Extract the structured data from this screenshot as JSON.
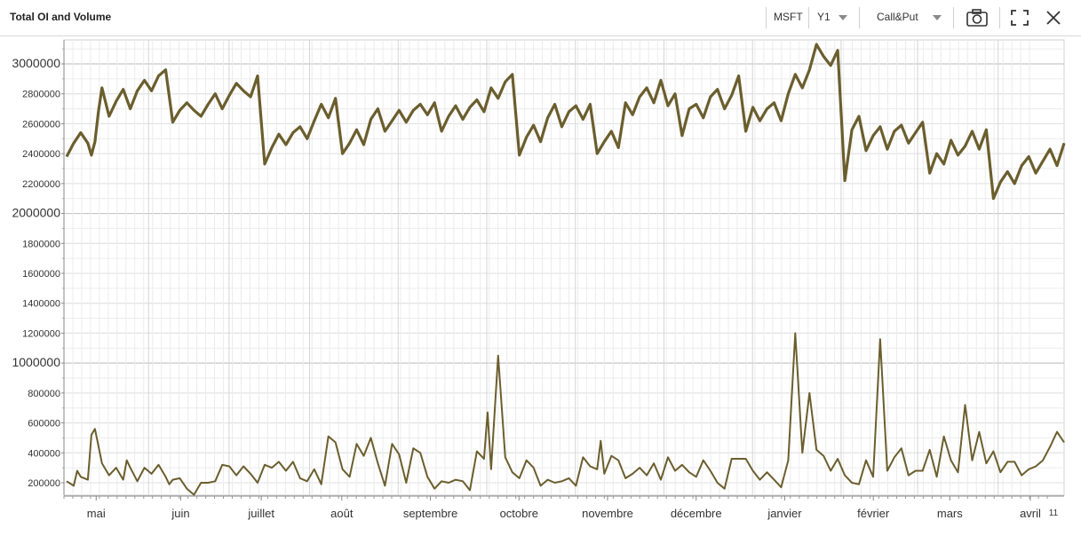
{
  "toolbar": {
    "title": "Total OI and Volume",
    "ticker": "MSFT",
    "period": "Y1",
    "type": "Call&Put"
  },
  "icons": [
    "camera-icon",
    "fullscreen-icon",
    "close-icon"
  ],
  "colors": {
    "series": "#6b5e2e",
    "grid_minor": "#ececec",
    "grid_major": "#c8c8c8",
    "axis": "#888888"
  },
  "chart_data": {
    "type": "line",
    "title": "",
    "xlabel": "",
    "ylabel": "",
    "ylim": [
      100000,
      3150000
    ],
    "yticks": [
      200000,
      400000,
      600000,
      800000,
      1000000,
      1200000,
      1400000,
      1600000,
      1800000,
      2000000,
      2200000,
      2400000,
      2600000,
      2800000,
      3000000
    ],
    "major_yticks": [
      1000000,
      2000000,
      3000000
    ],
    "xlim": [
      0,
      240
    ],
    "xticks": [
      {
        "label": "mai",
        "x": 8
      },
      {
        "label": "juin",
        "x": 29
      },
      {
        "label": "juillet",
        "x": 49
      },
      {
        "label": "août",
        "x": 69
      },
      {
        "label": "septembre",
        "x": 91
      },
      {
        "label": "octobre",
        "x": 113
      },
      {
        "label": "novembre",
        "x": 135
      },
      {
        "label": "décembre",
        "x": 157
      },
      {
        "label": "janvier",
        "x": 179
      },
      {
        "label": "février",
        "x": 201
      },
      {
        "label": "mars",
        "x": 220
      },
      {
        "label": "avril",
        "x": 240
      }
    ],
    "end_label": "11",
    "grid": true,
    "series": [
      {
        "points": [
          [
            0,
            2380000
          ],
          [
            1,
            2470000
          ],
          [
            2,
            2540000
          ],
          [
            3,
            2470000
          ],
          [
            3.5,
            2390000
          ],
          [
            4,
            2480000
          ],
          [
            4.5,
            2680000
          ],
          [
            5,
            2840000
          ],
          [
            6,
            2650000
          ],
          [
            7,
            2750000
          ],
          [
            8,
            2830000
          ],
          [
            9,
            2700000
          ],
          [
            10,
            2820000
          ],
          [
            11,
            2890000
          ],
          [
            12,
            2820000
          ],
          [
            13,
            2920000
          ],
          [
            14,
            2960000
          ],
          [
            15,
            2610000
          ],
          [
            16,
            2690000
          ],
          [
            17,
            2740000
          ],
          [
            18,
            2690000
          ],
          [
            19,
            2650000
          ],
          [
            20,
            2730000
          ],
          [
            21,
            2800000
          ],
          [
            22,
            2700000
          ],
          [
            23,
            2790000
          ],
          [
            24,
            2870000
          ],
          [
            25,
            2820000
          ],
          [
            26,
            2780000
          ],
          [
            27,
            2920000
          ],
          [
            28,
            2330000
          ],
          [
            29,
            2440000
          ],
          [
            30,
            2530000
          ],
          [
            31,
            2460000
          ],
          [
            32,
            2540000
          ],
          [
            33,
            2580000
          ],
          [
            34,
            2500000
          ],
          [
            35,
            2620000
          ],
          [
            36,
            2730000
          ],
          [
            37,
            2640000
          ],
          [
            38,
            2770000
          ],
          [
            39,
            2400000
          ],
          [
            40,
            2470000
          ],
          [
            41,
            2560000
          ],
          [
            42,
            2460000
          ],
          [
            43,
            2630000
          ],
          [
            44,
            2700000
          ],
          [
            45,
            2550000
          ],
          [
            46,
            2620000
          ],
          [
            47,
            2690000
          ],
          [
            48,
            2610000
          ],
          [
            49,
            2690000
          ],
          [
            50,
            2730000
          ],
          [
            51,
            2660000
          ],
          [
            52,
            2740000
          ],
          [
            53,
            2550000
          ],
          [
            54,
            2650000
          ],
          [
            55,
            2720000
          ],
          [
            56,
            2630000
          ],
          [
            57,
            2710000
          ],
          [
            58,
            2760000
          ],
          [
            59,
            2680000
          ],
          [
            60,
            2840000
          ],
          [
            61,
            2770000
          ],
          [
            62,
            2880000
          ],
          [
            63,
            2930000
          ],
          [
            64,
            2390000
          ],
          [
            65,
            2510000
          ],
          [
            66,
            2590000
          ],
          [
            67,
            2480000
          ],
          [
            68,
            2640000
          ],
          [
            69,
            2730000
          ],
          [
            70,
            2580000
          ],
          [
            71,
            2680000
          ],
          [
            72,
            2720000
          ],
          [
            73,
            2630000
          ],
          [
            74,
            2730000
          ],
          [
            75,
            2400000
          ],
          [
            76,
            2480000
          ],
          [
            77,
            2550000
          ],
          [
            78,
            2440000
          ],
          [
            79,
            2740000
          ],
          [
            80,
            2660000
          ],
          [
            81,
            2780000
          ],
          [
            82,
            2840000
          ],
          [
            83,
            2740000
          ],
          [
            84,
            2890000
          ],
          [
            85,
            2720000
          ],
          [
            86,
            2800000
          ],
          [
            87,
            2520000
          ],
          [
            88,
            2700000
          ],
          [
            89,
            2730000
          ],
          [
            90,
            2640000
          ],
          [
            91,
            2780000
          ],
          [
            92,
            2830000
          ],
          [
            93,
            2700000
          ],
          [
            94,
            2790000
          ],
          [
            95,
            2920000
          ],
          [
            96,
            2550000
          ],
          [
            97,
            2710000
          ],
          [
            98,
            2620000
          ],
          [
            99,
            2700000
          ],
          [
            100,
            2740000
          ],
          [
            101,
            2620000
          ],
          [
            102,
            2800000
          ],
          [
            103,
            2930000
          ],
          [
            104,
            2840000
          ],
          [
            105,
            2960000
          ],
          [
            106,
            3130000
          ],
          [
            107,
            3050000
          ],
          [
            108,
            2990000
          ],
          [
            109,
            3090000
          ],
          [
            110,
            2220000
          ],
          [
            111,
            2560000
          ],
          [
            112,
            2650000
          ],
          [
            113,
            2420000
          ],
          [
            114,
            2520000
          ],
          [
            115,
            2580000
          ],
          [
            116,
            2430000
          ],
          [
            117,
            2550000
          ],
          [
            118,
            2590000
          ],
          [
            119,
            2470000
          ],
          [
            120,
            2540000
          ],
          [
            121,
            2610000
          ],
          [
            122,
            2270000
          ],
          [
            123,
            2400000
          ],
          [
            124,
            2330000
          ],
          [
            125,
            2490000
          ],
          [
            126,
            2390000
          ],
          [
            127,
            2450000
          ],
          [
            128,
            2550000
          ],
          [
            129,
            2430000
          ],
          [
            130,
            2560000
          ],
          [
            131,
            2100000
          ],
          [
            132,
            2210000
          ],
          [
            133,
            2280000
          ],
          [
            134,
            2200000
          ],
          [
            135,
            2320000
          ],
          [
            136,
            2380000
          ],
          [
            137,
            2270000
          ],
          [
            138,
            2350000
          ],
          [
            139,
            2430000
          ],
          [
            140,
            2320000
          ],
          [
            141,
            2470000
          ]
        ]
      },
      {
        "points": [
          [
            0,
            210000
          ],
          [
            1,
            180000
          ],
          [
            1.5,
            280000
          ],
          [
            2,
            240000
          ],
          [
            3,
            220000
          ],
          [
            3.5,
            520000
          ],
          [
            4,
            560000
          ],
          [
            5,
            330000
          ],
          [
            6,
            250000
          ],
          [
            7,
            300000
          ],
          [
            8,
            220000
          ],
          [
            8.5,
            350000
          ],
          [
            9,
            300000
          ],
          [
            10,
            210000
          ],
          [
            11,
            300000
          ],
          [
            12,
            260000
          ],
          [
            13,
            320000
          ],
          [
            14,
            240000
          ],
          [
            14.5,
            190000
          ],
          [
            15,
            220000
          ],
          [
            16,
            230000
          ],
          [
            17,
            160000
          ],
          [
            18,
            120000
          ],
          [
            19,
            200000
          ],
          [
            20,
            200000
          ],
          [
            21,
            210000
          ],
          [
            22,
            320000
          ],
          [
            23,
            310000
          ],
          [
            24,
            250000
          ],
          [
            25,
            310000
          ],
          [
            26,
            260000
          ],
          [
            27,
            200000
          ],
          [
            28,
            320000
          ],
          [
            29,
            300000
          ],
          [
            30,
            340000
          ],
          [
            31,
            280000
          ],
          [
            32,
            340000
          ],
          [
            33,
            230000
          ],
          [
            34,
            210000
          ],
          [
            35,
            290000
          ],
          [
            36,
            190000
          ],
          [
            37,
            510000
          ],
          [
            38,
            470000
          ],
          [
            39,
            290000
          ],
          [
            40,
            240000
          ],
          [
            41,
            460000
          ],
          [
            42,
            380000
          ],
          [
            43,
            500000
          ],
          [
            44,
            330000
          ],
          [
            45,
            180000
          ],
          [
            46,
            460000
          ],
          [
            47,
            390000
          ],
          [
            48,
            200000
          ],
          [
            49,
            430000
          ],
          [
            50,
            400000
          ],
          [
            51,
            240000
          ],
          [
            52,
            160000
          ],
          [
            53,
            210000
          ],
          [
            54,
            200000
          ],
          [
            55,
            220000
          ],
          [
            56,
            210000
          ],
          [
            57,
            150000
          ],
          [
            58,
            410000
          ],
          [
            59,
            360000
          ],
          [
            59.5,
            670000
          ],
          [
            60,
            290000
          ],
          [
            61,
            1050000
          ],
          [
            62,
            370000
          ],
          [
            63,
            270000
          ],
          [
            64,
            230000
          ],
          [
            65,
            350000
          ],
          [
            66,
            300000
          ],
          [
            67,
            180000
          ],
          [
            68,
            220000
          ],
          [
            69,
            200000
          ],
          [
            70,
            210000
          ],
          [
            71,
            230000
          ],
          [
            72,
            180000
          ],
          [
            73,
            370000
          ],
          [
            74,
            310000
          ],
          [
            75,
            290000
          ],
          [
            75.5,
            480000
          ],
          [
            76,
            260000
          ],
          [
            77,
            380000
          ],
          [
            78,
            350000
          ],
          [
            79,
            230000
          ],
          [
            80,
            260000
          ],
          [
            81,
            300000
          ],
          [
            82,
            250000
          ],
          [
            83,
            330000
          ],
          [
            84,
            220000
          ],
          [
            85,
            370000
          ],
          [
            86,
            280000
          ],
          [
            87,
            320000
          ],
          [
            88,
            270000
          ],
          [
            89,
            240000
          ],
          [
            90,
            350000
          ],
          [
            91,
            280000
          ],
          [
            92,
            200000
          ],
          [
            93,
            160000
          ],
          [
            94,
            360000
          ],
          [
            95,
            360000
          ],
          [
            96,
            360000
          ],
          [
            97,
            280000
          ],
          [
            98,
            220000
          ],
          [
            99,
            270000
          ],
          [
            100,
            220000
          ],
          [
            101,
            170000
          ],
          [
            102,
            350000
          ],
          [
            103,
            1200000
          ],
          [
            104,
            400000
          ],
          [
            105,
            800000
          ],
          [
            106,
            420000
          ],
          [
            107,
            380000
          ],
          [
            108,
            280000
          ],
          [
            109,
            360000
          ],
          [
            110,
            250000
          ],
          [
            111,
            200000
          ],
          [
            112,
            190000
          ],
          [
            113,
            350000
          ],
          [
            114,
            240000
          ],
          [
            115,
            1160000
          ],
          [
            116,
            280000
          ],
          [
            117,
            370000
          ],
          [
            118,
            430000
          ],
          [
            119,
            250000
          ],
          [
            120,
            280000
          ],
          [
            121,
            280000
          ],
          [
            122,
            420000
          ],
          [
            123,
            240000
          ],
          [
            124,
            510000
          ],
          [
            125,
            350000
          ],
          [
            126,
            270000
          ],
          [
            127,
            720000
          ],
          [
            128,
            350000
          ],
          [
            129,
            540000
          ],
          [
            130,
            330000
          ],
          [
            131,
            410000
          ],
          [
            132,
            270000
          ],
          [
            133,
            340000
          ],
          [
            134,
            340000
          ],
          [
            135,
            250000
          ],
          [
            136,
            290000
          ],
          [
            137,
            310000
          ],
          [
            138,
            350000
          ],
          [
            139,
            440000
          ],
          [
            140,
            540000
          ],
          [
            141,
            470000
          ]
        ]
      }
    ]
  }
}
